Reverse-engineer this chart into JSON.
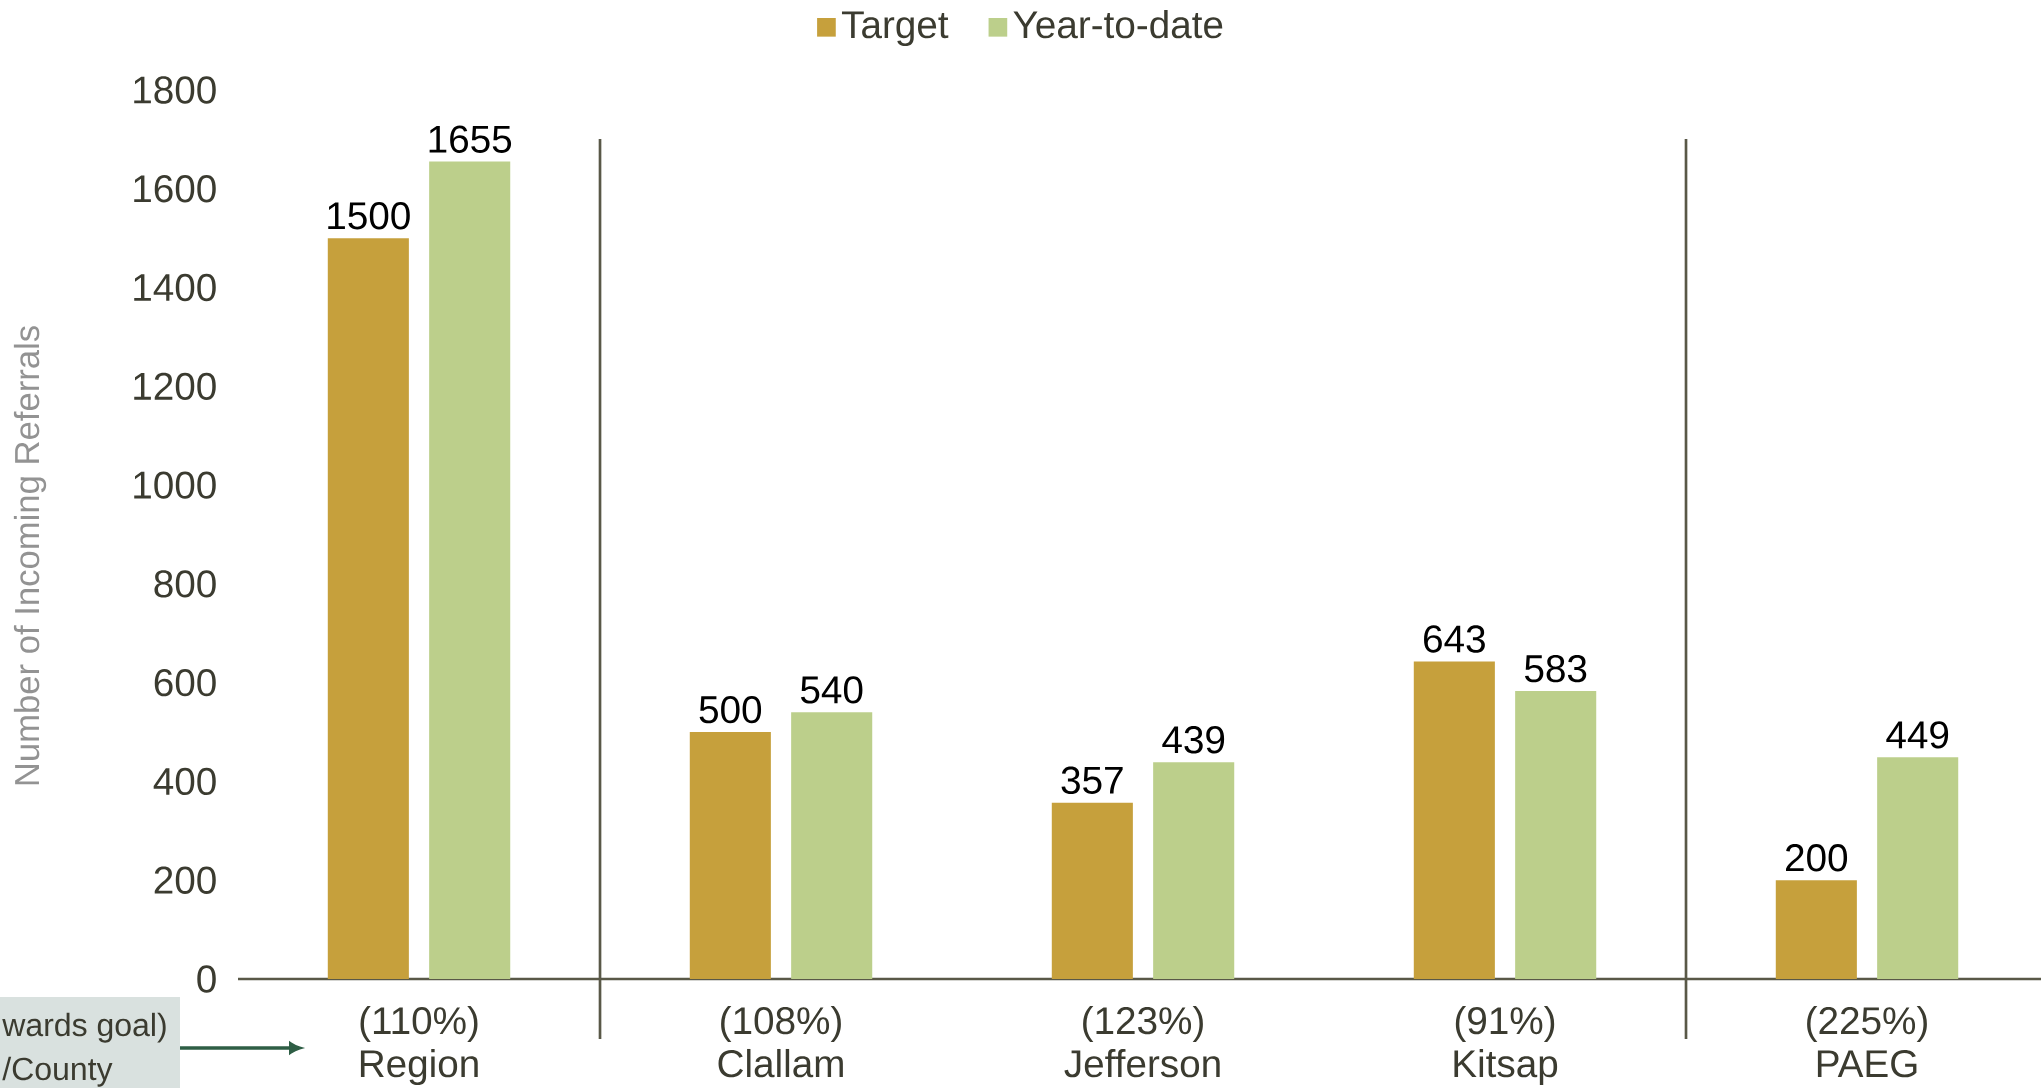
{
  "chart_data": {
    "type": "bar",
    "ylabel": "Number of Incoming Referrals",
    "categories": [
      "Region",
      "Clallam",
      "Jefferson",
      "Kitsap",
      "PAEG"
    ],
    "series": [
      {
        "name": "Target",
        "color": "#c6a03c",
        "values": [
          1500,
          500,
          357,
          643,
          200
        ]
      },
      {
        "name": "Year-to-date",
        "color": "#bccf8b",
        "values": [
          1655,
          540,
          439,
          583,
          449
        ]
      }
    ],
    "ylim": [
      0,
      1800
    ],
    "yticks": [
      0,
      200,
      400,
      600,
      800,
      1000,
      1200,
      1400,
      1600,
      1800
    ],
    "data_labels": true,
    "legend": "top",
    "grid": false,
    "annotations": [
      "(110%)",
      "(108%)",
      "(123%)",
      "(91%)",
      "(225%)",
      "wards goal)",
      "/County"
    ]
  }
}
